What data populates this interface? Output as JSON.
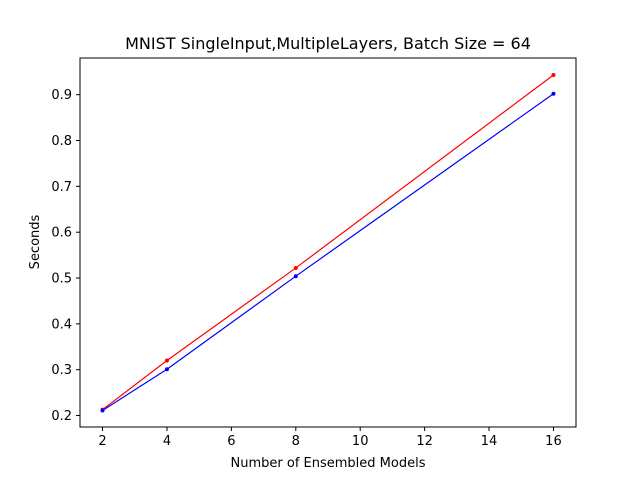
{
  "chart_data": {
    "type": "line",
    "title": "MNIST SingleInput,MultipleLayers, Batch Size = 64",
    "xlabel": "Number of Ensembled Models",
    "ylabel": "Seconds",
    "xlim": [
      1.3,
      16.7
    ],
    "ylim": [
      0.175,
      0.98
    ],
    "xticks": [
      2,
      4,
      6,
      8,
      10,
      12,
      14,
      16
    ],
    "yticks": [
      0.2,
      0.3,
      0.4,
      0.5,
      0.6,
      0.7,
      0.8,
      0.9
    ],
    "grid": false,
    "series": [
      {
        "color": "#ff0000",
        "marker": "point",
        "points": [
          [
            2,
            0.213
          ],
          [
            4,
            0.32
          ],
          [
            8,
            0.522
          ],
          [
            16,
            0.943
          ]
        ]
      },
      {
        "color": "#0000ff",
        "marker": "point",
        "points": [
          [
            2,
            0.211
          ],
          [
            4,
            0.301
          ],
          [
            8,
            0.504
          ],
          [
            16,
            0.902
          ]
        ]
      }
    ]
  }
}
